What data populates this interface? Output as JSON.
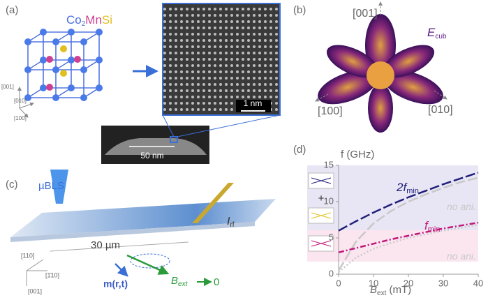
{
  "panels": {
    "a": {
      "label": "(a)",
      "formula": [
        "Co",
        "2",
        "Mn",
        "Si"
      ],
      "axes": [
        "[001]",
        "[010]",
        "[100]"
      ],
      "scale_stem": "1 nm",
      "scale_tem": "50 nm"
    },
    "b": {
      "label": "(b)",
      "axes": [
        "[001]",
        "[100]",
        "[010]"
      ],
      "energy": [
        "E",
        "cub"
      ]
    },
    "c": {
      "label": "(c)",
      "probe": "µBLS",
      "length": "30 µm",
      "current": [
        "I",
        "rf"
      ],
      "axes": [
        "[110]",
        "[1̄10]",
        "[001]"
      ],
      "magnetization": "m(r,t)",
      "field": [
        "B",
        "ext"
      ],
      "limit": "0"
    },
    "d": {
      "label": "(d)",
      "inset_plus": "+"
    }
  },
  "chart_data": {
    "type": "line",
    "y_label": "f (GHz)",
    "x_label": [
      "B",
      "ext",
      " (mT)"
    ],
    "x": [
      0,
      5,
      10,
      15,
      20,
      25,
      30,
      35,
      40
    ],
    "series": [
      {
        "name": "2f",
        "name_sub": "min",
        "color": "#1f1f7a",
        "dash": "14 4",
        "values": [
          6.0,
          7.3,
          8.5,
          9.6,
          10.6,
          11.5,
          12.4,
          13.2,
          14.0
        ]
      },
      {
        "name": "no ani.",
        "color": "#c8c8c8",
        "dash": "14 4",
        "values": [
          0.5,
          4.5,
          7.0,
          8.7,
          10.0,
          11.0,
          11.9,
          12.7,
          13.3
        ]
      },
      {
        "name": "f",
        "name_sub": "min",
        "color": "#c0187a",
        "dash": "8 3 2 3",
        "values": [
          3.0,
          3.6,
          4.2,
          4.8,
          5.3,
          5.8,
          6.3,
          6.7,
          7.1
        ]
      },
      {
        "name": "no ani.",
        "color": "#c8c8c8",
        "dash": "2 3",
        "values": [
          0.3,
          2.3,
          3.5,
          4.3,
          5.0,
          5.5,
          6.0,
          6.4,
          6.8
        ]
      }
    ],
    "xlim": [
      0,
      40
    ],
    "ylim": [
      0,
      15
    ],
    "xticks": [
      0,
      10,
      20,
      30,
      40
    ],
    "yticks": [
      0,
      5,
      10,
      15
    ]
  }
}
